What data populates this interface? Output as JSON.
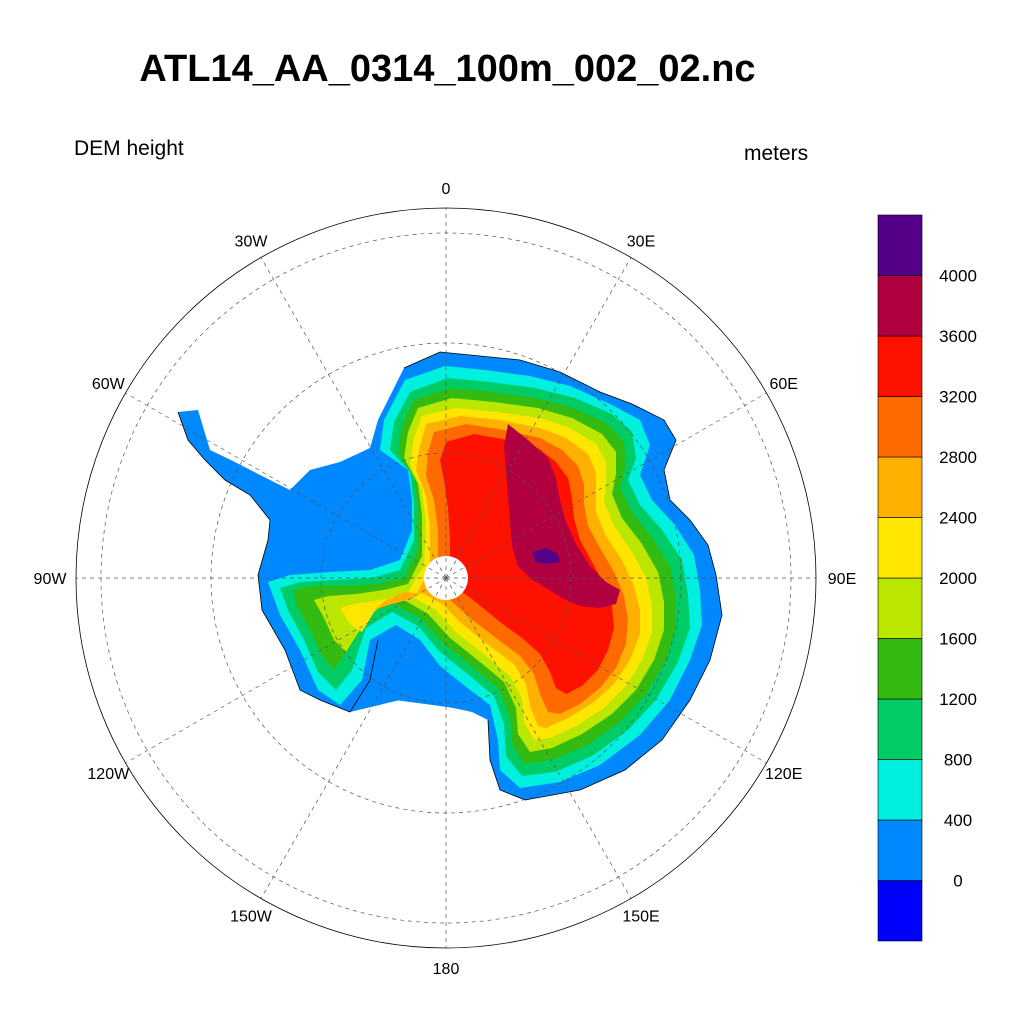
{
  "title": "ATL14_AA_0314_100m_002_02.nc",
  "left_label": "DEM height",
  "right_label": "meters",
  "longitude_labels": [
    {
      "deg": 0,
      "text": "0"
    },
    {
      "deg": 30,
      "text": "30E"
    },
    {
      "deg": 60,
      "text": "60E"
    },
    {
      "deg": 90,
      "text": "90E"
    },
    {
      "deg": 120,
      "text": "120E"
    },
    {
      "deg": 150,
      "text": "150E"
    },
    {
      "deg": 180,
      "text": "180"
    },
    {
      "deg": 210,
      "text": "150W"
    },
    {
      "deg": 240,
      "text": "120W"
    },
    {
      "deg": 270,
      "text": "90W"
    },
    {
      "deg": 300,
      "text": "60W"
    },
    {
      "deg": 330,
      "text": "30W"
    }
  ],
  "colorbar": {
    "colors": [
      "#0000ff",
      "#0088ff",
      "#00f0e0",
      "#00cc66",
      "#33bb11",
      "#bbe600",
      "#ffe600",
      "#ffb000",
      "#ff6a00",
      "#ff1100",
      "#b00040",
      "#550088"
    ],
    "tick_labels": [
      "0",
      "400",
      "800",
      "1200",
      "1600",
      "2000",
      "2400",
      "2800",
      "3200",
      "3600",
      "4000"
    ]
  },
  "map_colors": {
    "level_0": "#0000ff",
    "level_400": "#0088ff",
    "level_800": "#00f0e0",
    "level_1200": "#00cc66",
    "level_1600": "#33bb11",
    "level_2000": "#bbe600",
    "level_2400": "#ffe600",
    "level_2800": "#ffb000",
    "level_3200": "#ff6a00",
    "level_3600": "#ff1100",
    "level_4000": "#b00040",
    "level_4400": "#550088"
  }
}
